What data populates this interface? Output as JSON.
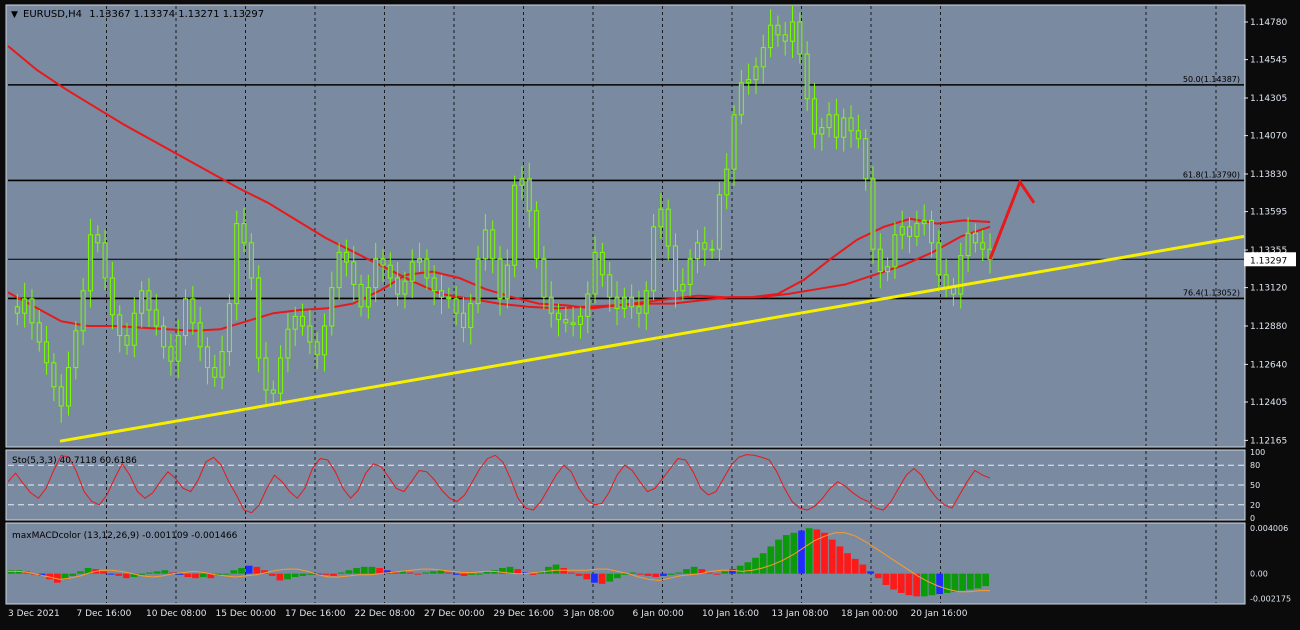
{
  "header": {
    "symbol": "EURUSD,H4",
    "ohlc": "1.13367 1.13374 1.13271 1.13297"
  },
  "colors": {
    "background": "#7a8aa0",
    "candle_up": "#7CFC00",
    "candle_down": "#7CFC00",
    "ma": "#e8191a",
    "trendline": "#f6f000",
    "level": "#000000",
    "grid": "#000000",
    "hist_up": "#0a9a0a",
    "hist_down": "#ff1a1a",
    "hist_blue": "#1f2cff"
  },
  "chart_data": [
    {
      "type": "line",
      "name": "main-price-chart",
      "ylim": [
        1.1213,
        1.1488
      ],
      "current_price": 1.13297,
      "current_price_label": "1.13297",
      "y_ticks": [
        1.1478,
        1.14545,
        1.14305,
        1.1407,
        1.1383,
        1.13595,
        1.13355,
        1.1312,
        1.1288,
        1.1264,
        1.12405,
        1.12165
      ],
      "y_tick_labels": [
        "1.14780",
        "1.14545",
        "1.14305",
        "1.14070",
        "1.13830",
        "1.13595",
        "1.13355",
        "1.13120",
        "1.12880",
        "1.12640",
        "1.12405",
        "1.12165"
      ],
      "x_tick_labels": [
        "3 Dec 2021",
        "7 Dec 16:00",
        "10 Dec 08:00",
        "15 Dec 00:00",
        "17 Dec 16:00",
        "22 Dec 08:00",
        "27 Dec 00:00",
        "29 Dec 16:00",
        "3 Jan 08:00",
        "6 Jan 00:00",
        "10 Jan 16:00",
        "13 Jan 08:00",
        "18 Jan 00:00",
        "20 Jan 16:00"
      ],
      "fibo_levels": [
        {
          "label": "50.0(1.14387)",
          "value": 1.14387
        },
        {
          "label": "61.8(1.13790)",
          "value": 1.1379
        },
        {
          "label": "76.4(1.13052)",
          "value": 1.13052
        }
      ],
      "horizontal_line": 1.13297,
      "price_path": [
        1.13,
        1.1296,
        1.1305,
        1.129,
        1.1278,
        1.1265,
        1.125,
        1.1238,
        1.1262,
        1.1285,
        1.131,
        1.1345,
        1.134,
        1.1318,
        1.1295,
        1.1282,
        1.1276,
        1.1296,
        1.131,
        1.1298,
        1.1288,
        1.1275,
        1.1266,
        1.1282,
        1.1305,
        1.129,
        1.1275,
        1.1262,
        1.1256,
        1.1272,
        1.1302,
        1.1352,
        1.134,
        1.1318,
        1.1268,
        1.1248,
        1.1246,
        1.1268,
        1.1286,
        1.1294,
        1.1288,
        1.1278,
        1.127,
        1.1288,
        1.1312,
        1.1334,
        1.1328,
        1.1314,
        1.13,
        1.1312,
        1.133,
        1.1326,
        1.1318,
        1.1308,
        1.1316,
        1.1328,
        1.133,
        1.1318,
        1.131,
        1.1306,
        1.1305,
        1.1296,
        1.1287,
        1.1302,
        1.133,
        1.1348,
        1.133,
        1.1305,
        1.1326,
        1.1376,
        1.138,
        1.136,
        1.133,
        1.1306,
        1.1296,
        1.1292,
        1.129,
        1.1289,
        1.1294,
        1.1308,
        1.1334,
        1.132,
        1.1306,
        1.1299,
        1.1306,
        1.13,
        1.1296,
        1.131,
        1.135,
        1.1361,
        1.1338,
        1.131,
        1.1314,
        1.133,
        1.134,
        1.1336,
        1.1336,
        1.137,
        1.1386,
        1.142,
        1.144,
        1.1442,
        1.145,
        1.1462,
        1.1476,
        1.147,
        1.1466,
        1.1478,
        1.1458,
        1.143,
        1.1408,
        1.1412,
        1.142,
        1.1406,
        1.1418,
        1.141,
        1.1405,
        1.138,
        1.1336,
        1.1322,
        1.1325,
        1.1345,
        1.135,
        1.1344,
        1.1352,
        1.1354,
        1.134,
        1.132,
        1.1312,
        1.1308,
        1.1332,
        1.1346,
        1.134,
        1.1336,
        1.13297
      ],
      "series": [
        {
          "name": "MA slow",
          "values": [
            1.1463,
            1.1448,
            1.1436,
            1.1425,
            1.1414,
            1.1404,
            1.1394,
            1.1384,
            1.1374,
            1.1365,
            1.1354,
            1.1343,
            1.1334,
            1.1325,
            1.1316,
            1.1308,
            1.1305,
            1.1302,
            1.13,
            1.1299,
            1.13,
            1.1301,
            1.1302,
            1.1302,
            1.1304,
            1.1306,
            1.1306,
            1.1308,
            1.1311,
            1.1314,
            1.132,
            1.1326,
            1.1334,
            1.1344,
            1.135
          ]
        },
        {
          "name": "MA fast",
          "values": [
            1.1309,
            1.13,
            1.1291,
            1.1288,
            1.1288,
            1.1287,
            1.1286,
            1.1285,
            1.1286,
            1.1291,
            1.1296,
            1.1298,
            1.1299,
            1.1302,
            1.131,
            1.132,
            1.1322,
            1.1318,
            1.1311,
            1.1306,
            1.1302,
            1.1301,
            1.1299,
            1.1301,
            1.1303,
            1.1305,
            1.1307,
            1.1306,
            1.1306,
            1.1308,
            1.1317,
            1.133,
            1.1342,
            1.135,
            1.1355,
            1.1352,
            1.1354,
            1.1353
          ]
        }
      ],
      "trendline": {
        "start": 1.1216,
        "end": 1.1336
      },
      "projection": [
        1.13297,
        1.1378,
        1.1365
      ]
    },
    {
      "type": "line",
      "name": "stochastic",
      "label": "Sto(5,3,3) 40.7118 60.6186",
      "ylim": [
        0,
        100
      ],
      "levels": [
        80,
        50,
        20
      ],
      "level_labels": [
        "100",
        "80",
        "50",
        "20",
        "0"
      ],
      "values": [
        55,
        68,
        52,
        38,
        30,
        45,
        72,
        95,
        92,
        70,
        40,
        25,
        20,
        35,
        60,
        82,
        65,
        40,
        30,
        38,
        55,
        70,
        60,
        45,
        40,
        58,
        85,
        92,
        80,
        55,
        35,
        12,
        8,
        20,
        45,
        65,
        55,
        40,
        30,
        45,
        75,
        90,
        88,
        70,
        45,
        30,
        42,
        68,
        82,
        78,
        62,
        45,
        40,
        55,
        72,
        70,
        58,
        42,
        30,
        25,
        35,
        55,
        75,
        90,
        95,
        85,
        60,
        30,
        15,
        12,
        25,
        45,
        65,
        80,
        70,
        45,
        28,
        20,
        22,
        40,
        65,
        80,
        72,
        55,
        40,
        45,
        60,
        75,
        90,
        88,
        70,
        45,
        35,
        40,
        60,
        80,
        92,
        96,
        95,
        92,
        88,
        70,
        45,
        25,
        15,
        12,
        18,
        30,
        45,
        55,
        48,
        38,
        30,
        25,
        15,
        12,
        25,
        45,
        65,
        75,
        65,
        45,
        30,
        20,
        15,
        35,
        55,
        72,
        65,
        60.6
      ]
    },
    {
      "type": "bar",
      "name": "maxMACDcolor",
      "label": "maxMACDcolor (13,12,26,9) -0.001109 -0.001466",
      "ylim": [
        -0.0025,
        0.0042
      ],
      "y_tick_labels": [
        "0.004006",
        "0.00",
        "-0.002175"
      ],
      "y_ticks": [
        0.004006,
        0.0,
        -0.002175
      ],
      "values": [
        0.0003,
        0.0003,
        0.0002,
        0.0,
        -0.0002,
        -0.0005,
        -0.0008,
        -0.0005,
        -0.0002,
        0.0002,
        0.0005,
        0.0004,
        0.0002,
        0.0,
        -0.0002,
        -0.0004,
        -0.0003,
        -0.0001,
        0.0001,
        0.0002,
        0.0003,
        0.0001,
        -0.0001,
        -0.0003,
        -0.0004,
        -0.0003,
        -0.0004,
        -0.0002,
        0.0,
        0.0003,
        0.0005,
        0.0007,
        0.0006,
        0.0003,
        -0.0002,
        -0.0006,
        -0.0005,
        -0.0003,
        -0.0002,
        -0.0001,
        0.0,
        -0.0001,
        -0.0002,
        0.0001,
        0.0003,
        0.0005,
        0.0006,
        0.0006,
        0.0005,
        0.0003,
        0.0002,
        0.0002,
        0.0001,
        0.0,
        0.0001,
        0.0002,
        0.0003,
        0.0001,
        -0.0001,
        -0.0002,
        -0.0001,
        0.0,
        0.0002,
        0.0003,
        0.0005,
        0.0006,
        0.0004,
        0.0001,
        -0.0001,
        0.0002,
        0.0006,
        0.0008,
        0.0005,
        0.0001,
        -0.0002,
        -0.0005,
        -0.0008,
        -0.0009,
        -0.0007,
        -0.0004,
        -0.0001,
        0.0001,
        0.0,
        -0.0002,
        -0.0003,
        -0.0002,
        -0.0001,
        0.0001,
        0.0004,
        0.0006,
        0.0004,
        0.0001,
        0.0,
        0.0002,
        0.0004,
        0.0007,
        0.001,
        0.0014,
        0.0018,
        0.0024,
        0.003,
        0.0034,
        0.0036,
        0.0038,
        0.004,
        0.0039,
        0.0036,
        0.003,
        0.0024,
        0.0018,
        0.0013,
        0.0008,
        0.0002,
        -0.0004,
        -0.001,
        -0.0014,
        -0.0017,
        -0.0019,
        -0.002,
        -0.002,
        -0.0019,
        -0.0018,
        -0.0017,
        -0.0016,
        -0.0015,
        -0.0014,
        -0.0013,
        -0.0011
      ],
      "signal": [
        0.0002,
        0.0002,
        0.0001,
        -0.0001,
        -0.0003,
        -0.0005,
        -0.0004,
        -0.0002,
        0.0001,
        0.0003,
        0.0003,
        0.0002,
        0.0,
        -0.0002,
        -0.0003,
        -0.0002,
        0.0,
        0.0001,
        0.0002,
        0.0001,
        -0.0001,
        -0.0002,
        -0.0003,
        -0.0002,
        -0.0001,
        0.0001,
        0.0003,
        0.0004,
        0.0004,
        0.0002,
        -0.0001,
        -0.0003,
        -0.0003,
        -0.0002,
        -0.0001,
        -0.0001,
        0.0,
        0.0001,
        0.0002,
        0.0003,
        0.0004,
        0.0004,
        0.0003,
        0.0002,
        0.0001,
        0.0001,
        0.0002,
        0.0002,
        0.0001,
        0.0,
        0.0,
        0.0001,
        0.0002,
        0.0003,
        0.0003,
        0.0003,
        0.0003,
        0.0004,
        0.0004,
        0.0002,
        0.0,
        -0.0003,
        -0.0005,
        -0.0006,
        -0.0004,
        -0.0002,
        -0.0001,
        0.0,
        0.0002,
        0.0003,
        0.0003,
        0.0002,
        0.0003,
        0.0005,
        0.0008,
        0.0012,
        0.0017,
        0.0023,
        0.0029,
        0.0033,
        0.0036,
        0.0036,
        0.0033,
        0.0028,
        0.0022,
        0.0016,
        0.001,
        0.0004,
        -0.0002,
        -0.0007,
        -0.0011,
        -0.0014,
        -0.0016,
        -0.0016,
        -0.0015,
        -0.0015
      ]
    }
  ]
}
